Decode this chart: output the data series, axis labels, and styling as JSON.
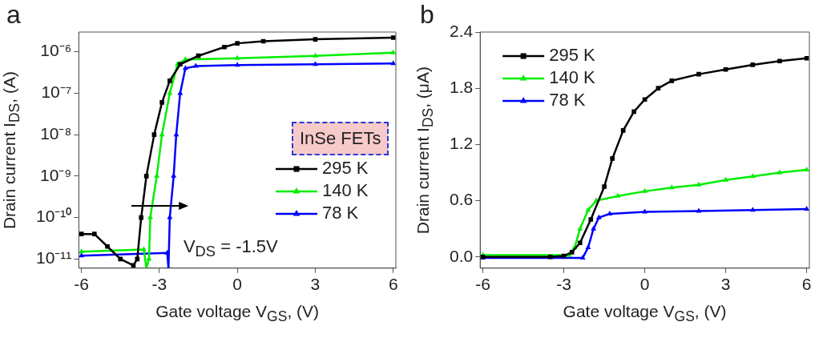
{
  "chart_data": [
    {
      "type": "line",
      "title": "a",
      "xlabel": "Gate voltage V$_{GS}$, (V)",
      "ylabel": "Drain current I$_{DS}$, (A)",
      "log": "y",
      "legend": "right",
      "grid": false,
      "line_style": "solid",
      "xlim": [
        -6.1,
        6.1
      ],
      "xticks": [
        -6,
        -3,
        0,
        3,
        6
      ],
      "ylim": [
        6e-12,
        3e-06
      ],
      "yticks": [
        {
          "value": 1e-11,
          "label": "10⁻¹¹"
        },
        {
          "value": 1e-10,
          "label": "10⁻¹⁰"
        },
        {
          "value": 1e-09,
          "label": "10⁻⁹"
        },
        {
          "value": 1e-08,
          "label": "10⁻⁸"
        },
        {
          "value": 1e-07,
          "label": "10⁻⁷"
        },
        {
          "value": 1e-06,
          "label": "10⁻⁶"
        }
      ],
      "annotations": [
        "InSe FETs",
        "V$_{DS}$ = -1.5V"
      ],
      "series": [
        {
          "name": "295 K",
          "color": "#000000",
          "marker": "square",
          "x": [
            -6,
            -5.5,
            -5,
            -4.5,
            -4,
            -3.85,
            -3.7,
            -3.5,
            -3.2,
            -2.9,
            -2.6,
            -2.2,
            -1.5,
            -0.5,
            0,
            1,
            3,
            6
          ],
          "values": [
            4e-11,
            4e-11,
            2e-11,
            1e-11,
            7e-12,
            1e-11,
            1e-10,
            1e-09,
            1e-08,
            6e-08,
            2e-07,
            5e-07,
            8e-07,
            1.3e-06,
            1.6e-06,
            1.8e-06,
            2e-06,
            2.2e-06
          ]
        },
        {
          "name": "140 K",
          "color": "#00ee00",
          "marker": "triangle",
          "x": [
            -6,
            -3.6,
            -3.5,
            -3.4,
            -3.35,
            -3.1,
            -2.9,
            -2.6,
            -2.3,
            -2,
            0,
            3,
            6
          ],
          "values": [
            1.5e-11,
            1.7e-11,
            6e-12,
            1e-11,
            1e-10,
            1e-09,
            1e-08,
            1e-07,
            5e-07,
            6.5e-07,
            7e-07,
            8e-07,
            9.5e-07
          ]
        },
        {
          "name": "78 K",
          "color": "#0000ff",
          "marker": "triangle",
          "x": [
            -6,
            -2.7,
            -2.65,
            -2.6,
            -2.45,
            -2.35,
            -2.2,
            -2,
            -1.6,
            0,
            3,
            6
          ],
          "values": [
            1.2e-11,
            1.4e-11,
            6e-12,
            1e-10,
            1e-09,
            1e-08,
            1e-07,
            4e-07,
            4.5e-07,
            4.8e-07,
            5e-07,
            5.2e-07
          ]
        }
      ]
    },
    {
      "type": "line",
      "title": "b",
      "xlabel": "Gate voltage V$_{GS}$, (V)",
      "ylabel": "Drain current I$_{DS}$, (μA)",
      "legend": "top left",
      "grid": false,
      "line_style": "solid",
      "xlim": [
        -6.1,
        6.1
      ],
      "xticks": [
        -6,
        -3,
        0,
        3,
        6
      ],
      "ylim": [
        -0.12,
        2.4
      ],
      "yticks": [
        {
          "value": 0,
          "label": "0.0"
        },
        {
          "value": 0.6,
          "label": "0.6"
        },
        {
          "value": 1.2,
          "label": "1.2"
        },
        {
          "value": 1.8,
          "label": "1.8"
        },
        {
          "value": 2.4,
          "label": "2.4"
        }
      ],
      "series": [
        {
          "name": "295 K",
          "color": "#000000",
          "marker": "square",
          "x": [
            -6,
            -3.5,
            -3,
            -2.7,
            -2.4,
            -2,
            -1.5,
            -1.2,
            -0.8,
            -0.4,
            0,
            0.5,
            1,
            2,
            3,
            4,
            5,
            6
          ],
          "values": [
            0,
            0,
            0.01,
            0.05,
            0.15,
            0.4,
            0.75,
            1.05,
            1.35,
            1.55,
            1.68,
            1.8,
            1.88,
            1.95,
            2.0,
            2.05,
            2.09,
            2.12
          ]
        },
        {
          "name": "140 K",
          "color": "#00ee00",
          "marker": "triangle",
          "x": [
            -6,
            -2.8,
            -2.6,
            -2.4,
            -2.1,
            -1.8,
            -1,
            0,
            1,
            2,
            3,
            4,
            5,
            6
          ],
          "values": [
            0.02,
            0.02,
            0.1,
            0.3,
            0.5,
            0.6,
            0.65,
            0.7,
            0.74,
            0.77,
            0.82,
            0.86,
            0.9,
            0.93
          ]
        },
        {
          "name": "78 K",
          "color": "#0000ff",
          "marker": "triangle",
          "x": [
            -6,
            -2.3,
            -2.1,
            -1.9,
            -1.7,
            -1.3,
            0,
            2,
            4,
            6
          ],
          "values": [
            -0.01,
            -0.01,
            0.1,
            0.3,
            0.42,
            0.46,
            0.48,
            0.49,
            0.5,
            0.51
          ]
        }
      ]
    }
  ]
}
